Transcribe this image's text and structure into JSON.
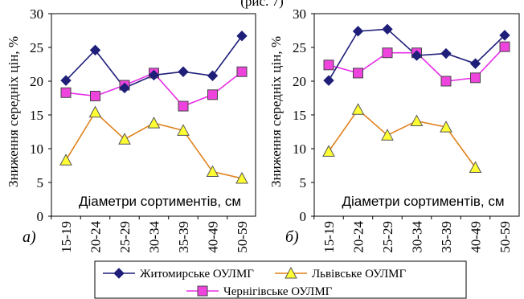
{
  "header_text": "(рис. 7)",
  "legend": {
    "items": [
      "Житомирське ОУЛМГ",
      "Львівське ОУЛМГ",
      "Чернігівське ОУЛМГ"
    ]
  },
  "colors": {
    "zhytomyr": "#1f1f7a",
    "lviv": "#e0821c",
    "lviv_marker": "#ffff33",
    "chernihiv": "#e62ee6",
    "chernihiv_marker": "#ee44dd"
  },
  "chart_data": [
    {
      "type": "line",
      "panel_label": "а)",
      "categories": [
        "15-19",
        "20-24",
        "25-29",
        "30-34",
        "35-39",
        "40-49",
        "50-59"
      ],
      "ylabel": "Зниження середніх цін, %",
      "xlabel": "Діаметри сортиментів, см",
      "ylim": [
        0,
        30
      ],
      "yticks": [
        0,
        5,
        10,
        15,
        20,
        25,
        30
      ],
      "grid": false,
      "legend_position": "bottom",
      "series": [
        {
          "name": "Житомирське ОУЛМГ",
          "marker": "diamond",
          "values": [
            20.1,
            24.6,
            19.0,
            20.9,
            21.4,
            20.8,
            26.7
          ]
        },
        {
          "name": "Львівське ОУЛМГ",
          "marker": "triangle",
          "values": [
            8.3,
            15.4,
            11.4,
            13.8,
            12.7,
            6.6,
            5.6
          ]
        },
        {
          "name": "Чернігівське ОУЛМГ",
          "marker": "square",
          "values": [
            18.3,
            17.8,
            19.4,
            21.2,
            16.3,
            18.0,
            21.4
          ]
        }
      ]
    },
    {
      "type": "line",
      "panel_label": "б)",
      "categories": [
        "15-19",
        "20-24",
        "25-29",
        "30-34",
        "35-39",
        "40-49",
        "50-59"
      ],
      "ylabel": "Зниження середніх цін, %",
      "xlabel": "Діаметри сортиментів, см",
      "ylim": [
        0,
        30
      ],
      "yticks": [
        0,
        5,
        10,
        15,
        20,
        25,
        30
      ],
      "grid": false,
      "legend_position": "bottom",
      "series": [
        {
          "name": "Житомирське ОУЛМГ",
          "marker": "diamond",
          "values": [
            20.1,
            27.4,
            27.7,
            23.8,
            24.1,
            22.6,
            26.8
          ]
        },
        {
          "name": "Львівське ОУЛМГ",
          "marker": "triangle",
          "values": [
            9.6,
            15.8,
            12.0,
            14.1,
            13.2,
            7.2,
            null
          ]
        },
        {
          "name": "Чернігівське ОУЛМГ",
          "marker": "square",
          "values": [
            22.4,
            21.2,
            24.2,
            24.2,
            20.0,
            20.5,
            25.1
          ]
        }
      ]
    }
  ]
}
